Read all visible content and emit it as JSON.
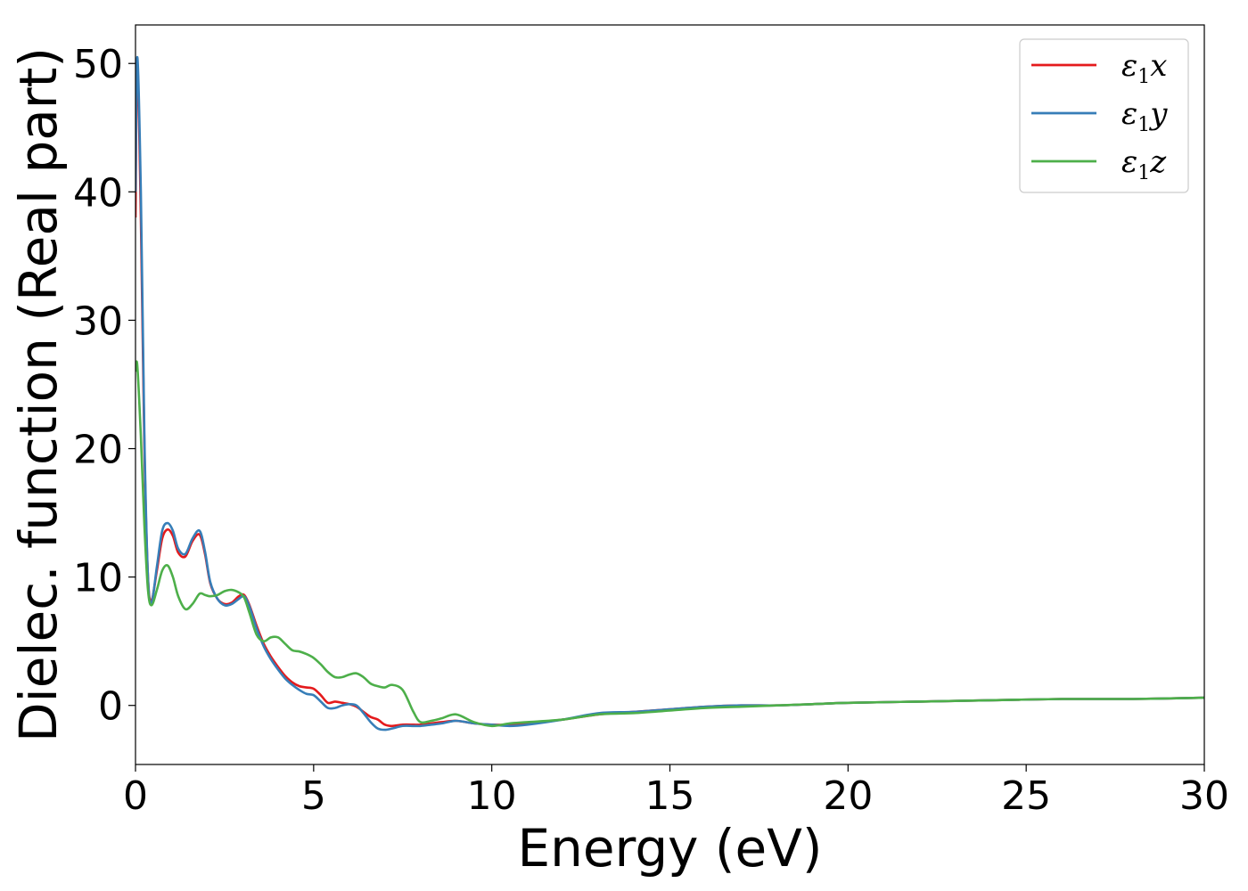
{
  "chart_data": {
    "type": "line",
    "xlabel": "Energy (eV)",
    "ylabel": "Dielec. function (Real part)",
    "xlim": [
      0,
      30
    ],
    "ylim": [
      -4.6,
      53
    ],
    "xticks": [
      0,
      5,
      10,
      15,
      20,
      25,
      30
    ],
    "yticks": [
      0,
      10,
      20,
      30,
      40,
      50
    ],
    "grid": false,
    "legend_position": "top-right",
    "series": [
      {
        "name": "ε1x",
        "color": "#e41a1c",
        "x": [
          0,
          0.05,
          0.15,
          0.25,
          0.35,
          0.45,
          0.6,
          0.75,
          0.9,
          1.05,
          1.2,
          1.4,
          1.6,
          1.8,
          1.95,
          2.1,
          2.3,
          2.5,
          2.7,
          2.9,
          3.05,
          3.2,
          3.4,
          3.6,
          3.8,
          4.0,
          4.2,
          4.4,
          4.6,
          4.8,
          5.0,
          5.2,
          5.4,
          5.6,
          5.8,
          6.0,
          6.2,
          6.4,
          6.6,
          6.8,
          7.0,
          7.2,
          7.5,
          7.8,
          8.0,
          8.3,
          8.6,
          9.0,
          9.5,
          10.0,
          10.5,
          11.0,
          12.0,
          13.0,
          14.0,
          15.0,
          16.0,
          17.0,
          18.0,
          19.0,
          20.0,
          22.0,
          24.0,
          26.0,
          28.0,
          30.0
        ],
        "values": [
          38,
          50,
          38,
          20,
          10,
          8.2,
          10.5,
          13.0,
          13.7,
          13.2,
          11.9,
          11.6,
          12.8,
          13.3,
          11.8,
          9.5,
          8.3,
          7.9,
          8.0,
          8.5,
          8.6,
          7.8,
          6.2,
          4.8,
          3.8,
          3.0,
          2.3,
          1.8,
          1.5,
          1.4,
          1.3,
          0.8,
          0.2,
          0.3,
          0.2,
          0.1,
          -0.1,
          -0.5,
          -0.9,
          -1.1,
          -1.5,
          -1.6,
          -1.5,
          -1.5,
          -1.5,
          -1.4,
          -1.3,
          -1.2,
          -1.4,
          -1.5,
          -1.5,
          -1.4,
          -1.1,
          -0.7,
          -0.5,
          -0.3,
          -0.1,
          0.0,
          0.0,
          0.1,
          0.2,
          0.3,
          0.4,
          0.5,
          0.5,
          0.6
        ]
      },
      {
        "name": "ε1y",
        "color": "#377eb8",
        "x": [
          0,
          0.05,
          0.15,
          0.25,
          0.35,
          0.45,
          0.6,
          0.75,
          0.9,
          1.05,
          1.2,
          1.4,
          1.6,
          1.8,
          1.95,
          2.1,
          2.3,
          2.5,
          2.7,
          2.9,
          3.05,
          3.2,
          3.4,
          3.6,
          3.8,
          4.0,
          4.2,
          4.4,
          4.6,
          4.8,
          5.0,
          5.2,
          5.4,
          5.6,
          5.8,
          6.0,
          6.2,
          6.4,
          6.6,
          6.8,
          7.0,
          7.2,
          7.5,
          7.8,
          8.0,
          8.3,
          8.6,
          9.0,
          9.5,
          10.0,
          10.5,
          11.0,
          12.0,
          13.0,
          14.0,
          15.0,
          16.0,
          17.0,
          18.0,
          19.0,
          20.0,
          22.0,
          24.0,
          26.0,
          28.0,
          30.0
        ],
        "values": [
          40,
          50.5,
          40,
          21,
          10,
          8.0,
          10.8,
          13.6,
          14.2,
          13.6,
          12.2,
          11.8,
          13.0,
          13.6,
          12.0,
          9.6,
          8.3,
          7.8,
          7.9,
          8.3,
          8.5,
          7.7,
          6.0,
          4.6,
          3.6,
          2.8,
          2.1,
          1.6,
          1.2,
          0.9,
          0.8,
          0.3,
          -0.2,
          -0.2,
          0.0,
          0.1,
          0.0,
          -0.6,
          -1.3,
          -1.8,
          -1.9,
          -1.8,
          -1.6,
          -1.6,
          -1.6,
          -1.5,
          -1.4,
          -1.2,
          -1.4,
          -1.5,
          -1.6,
          -1.5,
          -1.1,
          -0.6,
          -0.5,
          -0.3,
          -0.1,
          0.0,
          0.0,
          0.1,
          0.2,
          0.3,
          0.4,
          0.5,
          0.5,
          0.6
        ]
      },
      {
        "name": "ε1z",
        "color": "#4daf4a",
        "x": [
          0,
          0.05,
          0.15,
          0.25,
          0.35,
          0.45,
          0.6,
          0.75,
          0.9,
          1.05,
          1.2,
          1.4,
          1.6,
          1.8,
          1.95,
          2.1,
          2.3,
          2.5,
          2.7,
          2.9,
          3.05,
          3.2,
          3.4,
          3.6,
          3.8,
          4.0,
          4.2,
          4.4,
          4.6,
          4.8,
          5.0,
          5.2,
          5.4,
          5.6,
          5.8,
          6.0,
          6.2,
          6.4,
          6.6,
          6.8,
          7.0,
          7.2,
          7.5,
          7.8,
          8.0,
          8.3,
          8.6,
          9.0,
          9.5,
          10.0,
          10.5,
          11.0,
          12.0,
          13.0,
          14.0,
          15.0,
          16.0,
          17.0,
          18.0,
          19.0,
          20.0,
          22.0,
          24.0,
          26.0,
          28.0,
          30.0
        ],
        "values": [
          26,
          26.5,
          21,
          14,
          9,
          7.8,
          9.0,
          10.5,
          10.9,
          10.0,
          8.5,
          7.5,
          7.9,
          8.7,
          8.6,
          8.5,
          8.6,
          8.9,
          9.0,
          8.8,
          8.4,
          7.2,
          5.5,
          5.0,
          5.3,
          5.3,
          4.8,
          4.3,
          4.2,
          4.0,
          3.7,
          3.2,
          2.6,
          2.2,
          2.2,
          2.4,
          2.5,
          2.2,
          1.7,
          1.5,
          1.4,
          1.6,
          1.2,
          -0.5,
          -1.3,
          -1.2,
          -1.0,
          -0.7,
          -1.3,
          -1.6,
          -1.4,
          -1.3,
          -1.1,
          -0.7,
          -0.6,
          -0.4,
          -0.2,
          -0.1,
          0.0,
          0.1,
          0.2,
          0.3,
          0.4,
          0.5,
          0.5,
          0.6
        ]
      }
    ]
  }
}
